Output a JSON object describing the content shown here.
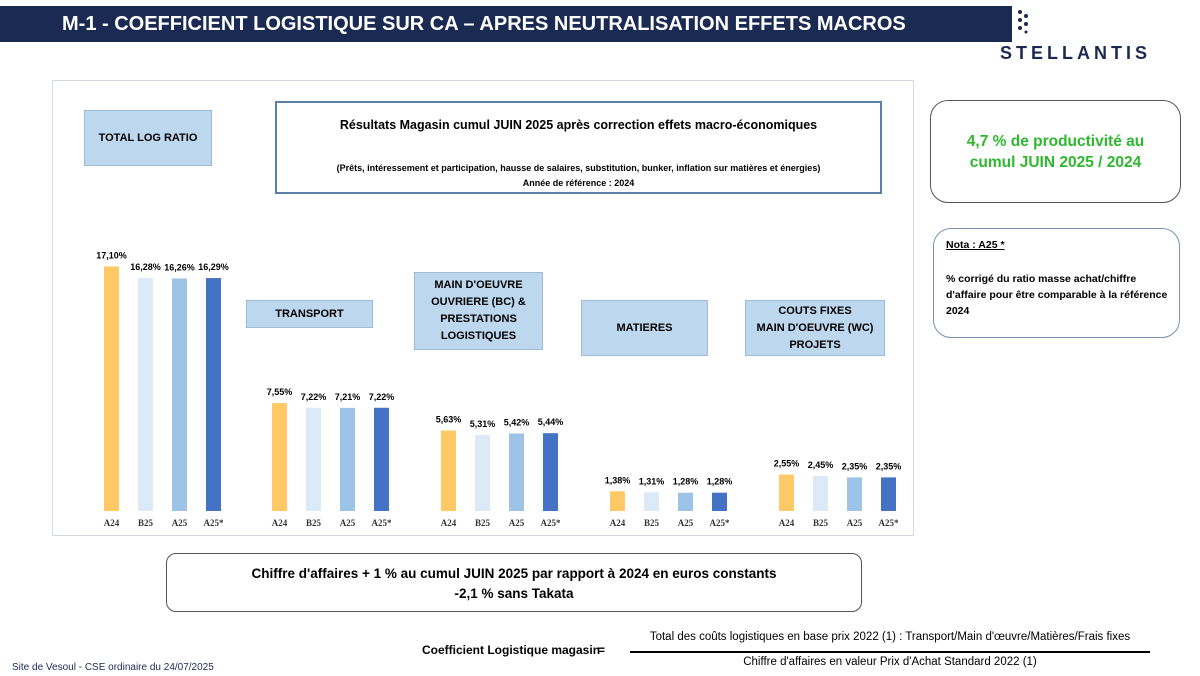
{
  "header": {
    "title": "M-1 - COEFFICIENT LOGISTIQUE SUR CA – APRES NEUTRALISATION EFFETS MACROS",
    "logo_text": "STELLANTIS",
    "colors": {
      "bar": "#1b2a52"
    }
  },
  "results_box": {
    "title": "Résultats Magasin cumul JUIN 2025 après correction effets macro-économiques",
    "subtitle": "(Prêts, intéressement et participation, hausse de salaires, substitution, bunker, inflation sur matières et énergies)",
    "reference": "Année de référence : 2024"
  },
  "productivity_box": {
    "text": "4,7 % de productivité au\ncumul JUIN 2025 / 2024",
    "color": "#2eb82e"
  },
  "nota": {
    "title": "Nota : A25 *",
    "text": "% corrigé du ratio masse achat/chiffre d'affaire pour être comparable à la référence 2024"
  },
  "ca_box": {
    "line1": "Chiffre d'affaires + 1 % au cumul JUIN 2025 par rapport à 2024  en euros constants",
    "line2": "-2,1 % sans Takata"
  },
  "formula": {
    "label": "Coefficient Logistique magasin",
    "equals": "=",
    "numerator": "Total des coûts logistiques en base prix 2022 (1) : Transport/Main d'œuvre/Matières/Frais fixes",
    "denominator": "Chiffre d'affaires en valeur Prix d'Achat Standard 2022 (1)"
  },
  "footer": {
    "text": "Site de Vesoul - CSE ordinaire du 24/07/2025"
  },
  "chart_data": {
    "type": "bar",
    "series_labels": [
      "A24",
      "B25",
      "A25",
      "A25*"
    ],
    "series_colors": [
      "#ffc965",
      "#dce9f7",
      "#9dc3e6",
      "#4472c4"
    ],
    "groups": [
      {
        "name": "TOTAL LOG RATIO",
        "values": [
          17.1,
          16.28,
          16.26,
          16.29
        ],
        "labels": [
          "17,10%",
          "16,28%",
          "16,26%",
          "16,29%"
        ]
      },
      {
        "name": "TRANSPORT",
        "values": [
          7.55,
          7.22,
          7.21,
          7.22
        ],
        "labels": [
          "7,55%",
          "7,22%",
          "7,21%",
          "7,22%"
        ]
      },
      {
        "name": "MAIN D'OEUVRE\nOUVRIERE  (BC) &\nPRESTATIONS\nLOGISTIQUES",
        "values": [
          5.63,
          5.31,
          5.42,
          5.44
        ],
        "labels": [
          "5,63%",
          "5,31%",
          "5,42%",
          "5,44%"
        ]
      },
      {
        "name": "MATIERES",
        "values": [
          1.38,
          1.31,
          1.28,
          1.28
        ],
        "labels": [
          "1,38%",
          "1,31%",
          "1,28%",
          "1,28%"
        ]
      },
      {
        "name": "COUTS FIXES\nMAIN D'OEUVRE (WC)\nPROJETS",
        "values": [
          2.55,
          2.45,
          2.35,
          2.35
        ],
        "labels": [
          "2,55%",
          "2,45%",
          "2,35%",
          "2,35%"
        ]
      }
    ]
  }
}
